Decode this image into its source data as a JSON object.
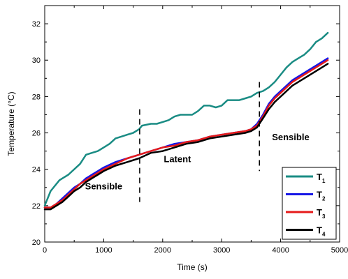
{
  "chart_data": {
    "type": "line",
    "title": "",
    "xlabel": "Time (s)",
    "ylabel": "Temperature (°C)",
    "xlim": [
      0,
      5000
    ],
    "ylim": [
      20,
      33
    ],
    "xticks": [
      0,
      1000,
      2000,
      3000,
      4000,
      5000
    ],
    "xtick_labels": [
      "0",
      "1000",
      "2000",
      "3000",
      "4000",
      "5000"
    ],
    "yticks": [
      20,
      22,
      24,
      26,
      28,
      30,
      32
    ],
    "ytick_labels": [
      "20",
      "22",
      "24",
      "26",
      "28",
      "30",
      "32"
    ],
    "grid": false,
    "legend_position": "bottom-right",
    "series": [
      {
        "name": "T1",
        "label_main": "T",
        "label_sub": "1",
        "color": "#1a8c84",
        "x": [
          0,
          100,
          250,
          400,
          600,
          700,
          800,
          900,
          1000,
          1100,
          1200,
          1300,
          1400,
          1500,
          1600,
          1650,
          1800,
          1900,
          2000,
          2100,
          2200,
          2300,
          2400,
          2500,
          2600,
          2700,
          2800,
          2900,
          3000,
          3100,
          3200,
          3300,
          3400,
          3500,
          3600,
          3700,
          3800,
          3900,
          4000,
          4100,
          4200,
          4300,
          4400,
          4500,
          4600,
          4700,
          4800
        ],
        "y": [
          22.0,
          22.8,
          23.4,
          23.7,
          24.3,
          24.8,
          24.9,
          25.0,
          25.2,
          25.4,
          25.7,
          25.8,
          25.9,
          26.0,
          26.2,
          26.4,
          26.5,
          26.5,
          26.6,
          26.7,
          26.9,
          27.0,
          27.0,
          27.0,
          27.2,
          27.5,
          27.5,
          27.4,
          27.5,
          27.8,
          27.8,
          27.8,
          27.9,
          28.0,
          28.2,
          28.3,
          28.5,
          28.8,
          29.2,
          29.6,
          29.9,
          30.1,
          30.3,
          30.6,
          31.0,
          31.2,
          31.5
        ]
      },
      {
        "name": "T2",
        "label_main": "T",
        "label_sub": "2",
        "color": "#1616e6",
        "x": [
          0,
          100,
          200,
          300,
          400,
          500,
          600,
          700,
          800,
          900,
          1000,
          1200,
          1400,
          1600,
          1800,
          2000,
          2200,
          2400,
          2600,
          2800,
          3000,
          3200,
          3400,
          3500,
          3600,
          3700,
          3800,
          3900,
          4000,
          4200,
          4400,
          4600,
          4800
        ],
        "y": [
          21.9,
          21.9,
          22.1,
          22.4,
          22.7,
          23.0,
          23.2,
          23.5,
          23.7,
          23.9,
          24.1,
          24.4,
          24.6,
          24.8,
          25.0,
          25.2,
          25.4,
          25.5,
          25.6,
          25.8,
          25.9,
          26.0,
          26.1,
          26.2,
          26.5,
          27.0,
          27.6,
          28.0,
          28.3,
          28.9,
          29.3,
          29.7,
          30.1
        ]
      },
      {
        "name": "T3",
        "label_main": "T",
        "label_sub": "3",
        "color": "#e61a1a",
        "x": [
          0,
          100,
          200,
          300,
          400,
          500,
          600,
          700,
          800,
          900,
          1000,
          1200,
          1400,
          1600,
          1800,
          2000,
          2200,
          2400,
          2600,
          2800,
          3000,
          3200,
          3400,
          3500,
          3600,
          3700,
          3800,
          3900,
          4000,
          4200,
          4400,
          4600,
          4800
        ],
        "y": [
          21.9,
          21.9,
          22.1,
          22.3,
          22.6,
          22.9,
          23.2,
          23.4,
          23.6,
          23.8,
          24.0,
          24.3,
          24.6,
          24.8,
          25.0,
          25.2,
          25.3,
          25.5,
          25.6,
          25.8,
          25.9,
          26.0,
          26.1,
          26.2,
          26.4,
          26.9,
          27.5,
          27.9,
          28.2,
          28.8,
          29.2,
          29.6,
          30.0
        ]
      },
      {
        "name": "T4",
        "label_main": "T",
        "label_sub": "4",
        "color": "#000000",
        "x": [
          0,
          100,
          200,
          300,
          400,
          500,
          600,
          700,
          800,
          900,
          1000,
          1200,
          1400,
          1600,
          1800,
          2000,
          2200,
          2400,
          2600,
          2800,
          3000,
          3200,
          3400,
          3500,
          3600,
          3700,
          3800,
          3900,
          4000,
          4200,
          4400,
          4600,
          4800
        ],
        "y": [
          21.8,
          21.8,
          22.0,
          22.2,
          22.5,
          22.8,
          23.0,
          23.3,
          23.5,
          23.7,
          23.9,
          24.2,
          24.4,
          24.6,
          24.9,
          25.0,
          25.2,
          25.4,
          25.5,
          25.7,
          25.8,
          25.9,
          26.0,
          26.1,
          26.3,
          26.8,
          27.3,
          27.7,
          28.0,
          28.6,
          29.0,
          29.4,
          29.8
        ]
      }
    ],
    "dividers": [
      {
        "x": 1610,
        "y_from": 22.2,
        "y_to": 27.3
      },
      {
        "x": 3640,
        "y_from": 23.9,
        "y_to": 28.8
      }
    ],
    "annotations": [
      {
        "text": "Sensible",
        "x": 1000,
        "y": 22.9
      },
      {
        "text": "Latent",
        "x": 2250,
        "y": 24.4
      },
      {
        "text": "Sensible",
        "x": 4170,
        "y": 25.6
      }
    ]
  }
}
